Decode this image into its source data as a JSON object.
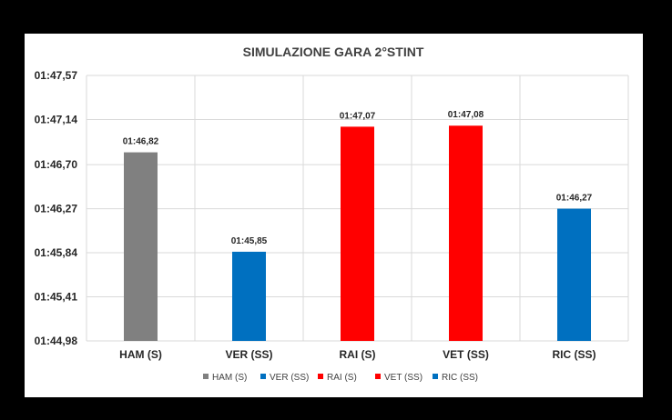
{
  "chart_data": {
    "type": "bar",
    "title": "SIMULAZIONE GARA 2°STINT",
    "xlabel": "",
    "ylabel": "",
    "categories": [
      "HAM (S)",
      "VER (SS)",
      "RAI (S)",
      "VET (SS)",
      "RIC (SS)"
    ],
    "values": [
      106.82,
      105.85,
      107.07,
      107.08,
      106.27
    ],
    "value_labels": [
      "01:46,82",
      "01:45,85",
      "01:47,07",
      "01:47,08",
      "01:46,27"
    ],
    "bar_colors": [
      "#808080",
      "#0070C0",
      "#FF0000",
      "#FF0000",
      "#0070C0"
    ],
    "ylim": [
      104.98,
      107.57
    ],
    "yticks": [
      104.98,
      105.41,
      105.84,
      106.27,
      106.7,
      107.14,
      107.57
    ],
    "ytick_labels": [
      "01:44,98",
      "01:45,41",
      "01:45,84",
      "01:46,27",
      "01:46,70",
      "01:47,14",
      "01:47,57"
    ],
    "grid": true,
    "legend_position": "bottom",
    "legend": [
      {
        "name": "HAM (S)",
        "color": "#808080"
      },
      {
        "name": "VER (SS)",
        "color": "#0070C0"
      },
      {
        "name": "RAI (S)",
        "color": "#FF0000"
      },
      {
        "name": "VET (SS)",
        "color": "#FF0000"
      },
      {
        "name": "RIC (SS)",
        "color": "#0070C0"
      }
    ]
  }
}
